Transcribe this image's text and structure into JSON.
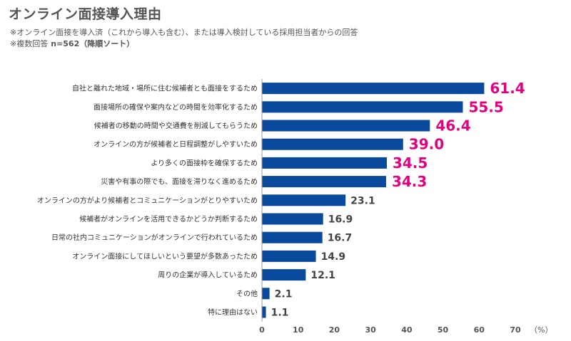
{
  "header": {
    "title": "オンライン面接導入理由",
    "note_line1": "※オンライン面接を導入済（これから導入も含む）、または導入検討している採用担当者からの回答",
    "note_line2": "※複数回答",
    "note_n": "n=562（降順ソート）"
  },
  "chart_data": {
    "type": "bar",
    "orientation": "horizontal",
    "title": "オンライン面接導入理由",
    "categories": [
      "自社と離れた地域・場所に住む候補者とも面接をするため",
      "面接場所の確保や案内などの時間を効率化するため",
      "候補者の移動の時間や交通費を削減してもらうため",
      "オンラインの方が候補者と日程調整がしやすいため",
      "より多くの面接枠を確保するため",
      "災害や有事の際でも、面接を滞りなく進めるため",
      "オンラインの方がより候補者とコミュニケーションがとりやすいため",
      "候補者がオンラインを活用できるかどうか判断するため",
      "日常の社内コミュニケーションがオンラインで行われているため",
      "オンライン面接にしてほしいという要望が多数あったため",
      "周りの企業が導入しているため",
      "その他",
      "特に理由はない"
    ],
    "values": [
      61.4,
      55.5,
      46.4,
      39.0,
      34.5,
      34.3,
      23.1,
      16.9,
      16.7,
      14.9,
      12.1,
      2.1,
      1.1
    ],
    "value_labels": [
      "61.4",
      "55.5",
      "46.4",
      "39.0",
      "34.5",
      "34.3",
      "23.1",
      "16.9",
      "16.7",
      "14.9",
      "12.1",
      "2.1",
      "1.1"
    ],
    "highlight_count": 6,
    "xlim": [
      0,
      70
    ],
    "xticks": [
      "0",
      "10",
      "20",
      "30",
      "40",
      "50",
      "60",
      "70"
    ],
    "xunit": "（%）",
    "xlabel": "",
    "ylabel": "",
    "colors": {
      "bar": "#0a4a9c",
      "highlight": "#e5007f",
      "label": "#444444"
    }
  }
}
